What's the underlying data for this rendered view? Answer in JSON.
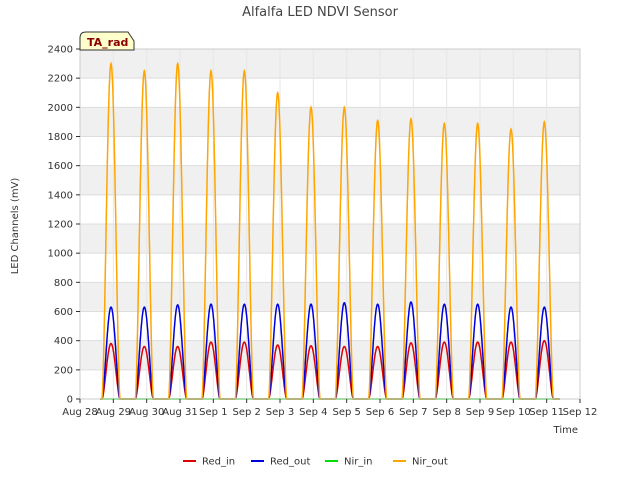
{
  "chart_data": {
    "type": "line",
    "title": "Alfalfa LED NDVI Sensor",
    "xlabel": "Time",
    "ylabel": "LED Channels (mV)",
    "ylim": [
      0,
      2400
    ],
    "xlim": [
      0,
      15
    ],
    "yticks": [
      0,
      200,
      400,
      600,
      800,
      1000,
      1200,
      1400,
      1600,
      1800,
      2000,
      2200,
      2400
    ],
    "xtick_labels": [
      "Aug 28",
      "Aug 29",
      "Aug 30",
      "Aug 31",
      "Sep 1",
      "Sep 2",
      "Sep 3",
      "Sep 4",
      "Sep 5",
      "Sep 6",
      "Sep 7",
      "Sep 8",
      "Sep 9",
      "Sep 10",
      "Sep 11",
      "Sep 12"
    ],
    "grid": true,
    "badge": "TA_rad",
    "x_start": 0.6,
    "x_end": 14.4,
    "day_offsets": [
      0.93,
      1.93,
      2.93,
      3.93,
      4.93,
      5.93,
      6.93,
      7.93,
      8.93,
      9.93,
      10.93,
      11.93,
      12.93,
      13.93
    ],
    "day_halfwidth": 0.27,
    "series": [
      {
        "name": "Red_in",
        "color": "#dd0000",
        "peaks": [
          380,
          360,
          360,
          390,
          390,
          370,
          365,
          360,
          360,
          385,
          390,
          390,
          390,
          400
        ]
      },
      {
        "name": "Red_out",
        "color": "#0000dd",
        "peaks": [
          630,
          630,
          645,
          650,
          650,
          650,
          650,
          660,
          650,
          665,
          650,
          650,
          630,
          630
        ]
      },
      {
        "name": "Nir_in",
        "color": "#00dd00",
        "peaks": [
          0,
          0,
          0,
          0,
          0,
          0,
          0,
          0,
          0,
          0,
          0,
          0,
          0,
          0
        ]
      },
      {
        "name": "Nir_out",
        "color": "#ffa500",
        "peaks": [
          2300,
          2250,
          2300,
          2250,
          2250,
          2100,
          2000,
          2000,
          1910,
          1920,
          1890,
          1890,
          1850,
          1900
        ]
      }
    ]
  }
}
